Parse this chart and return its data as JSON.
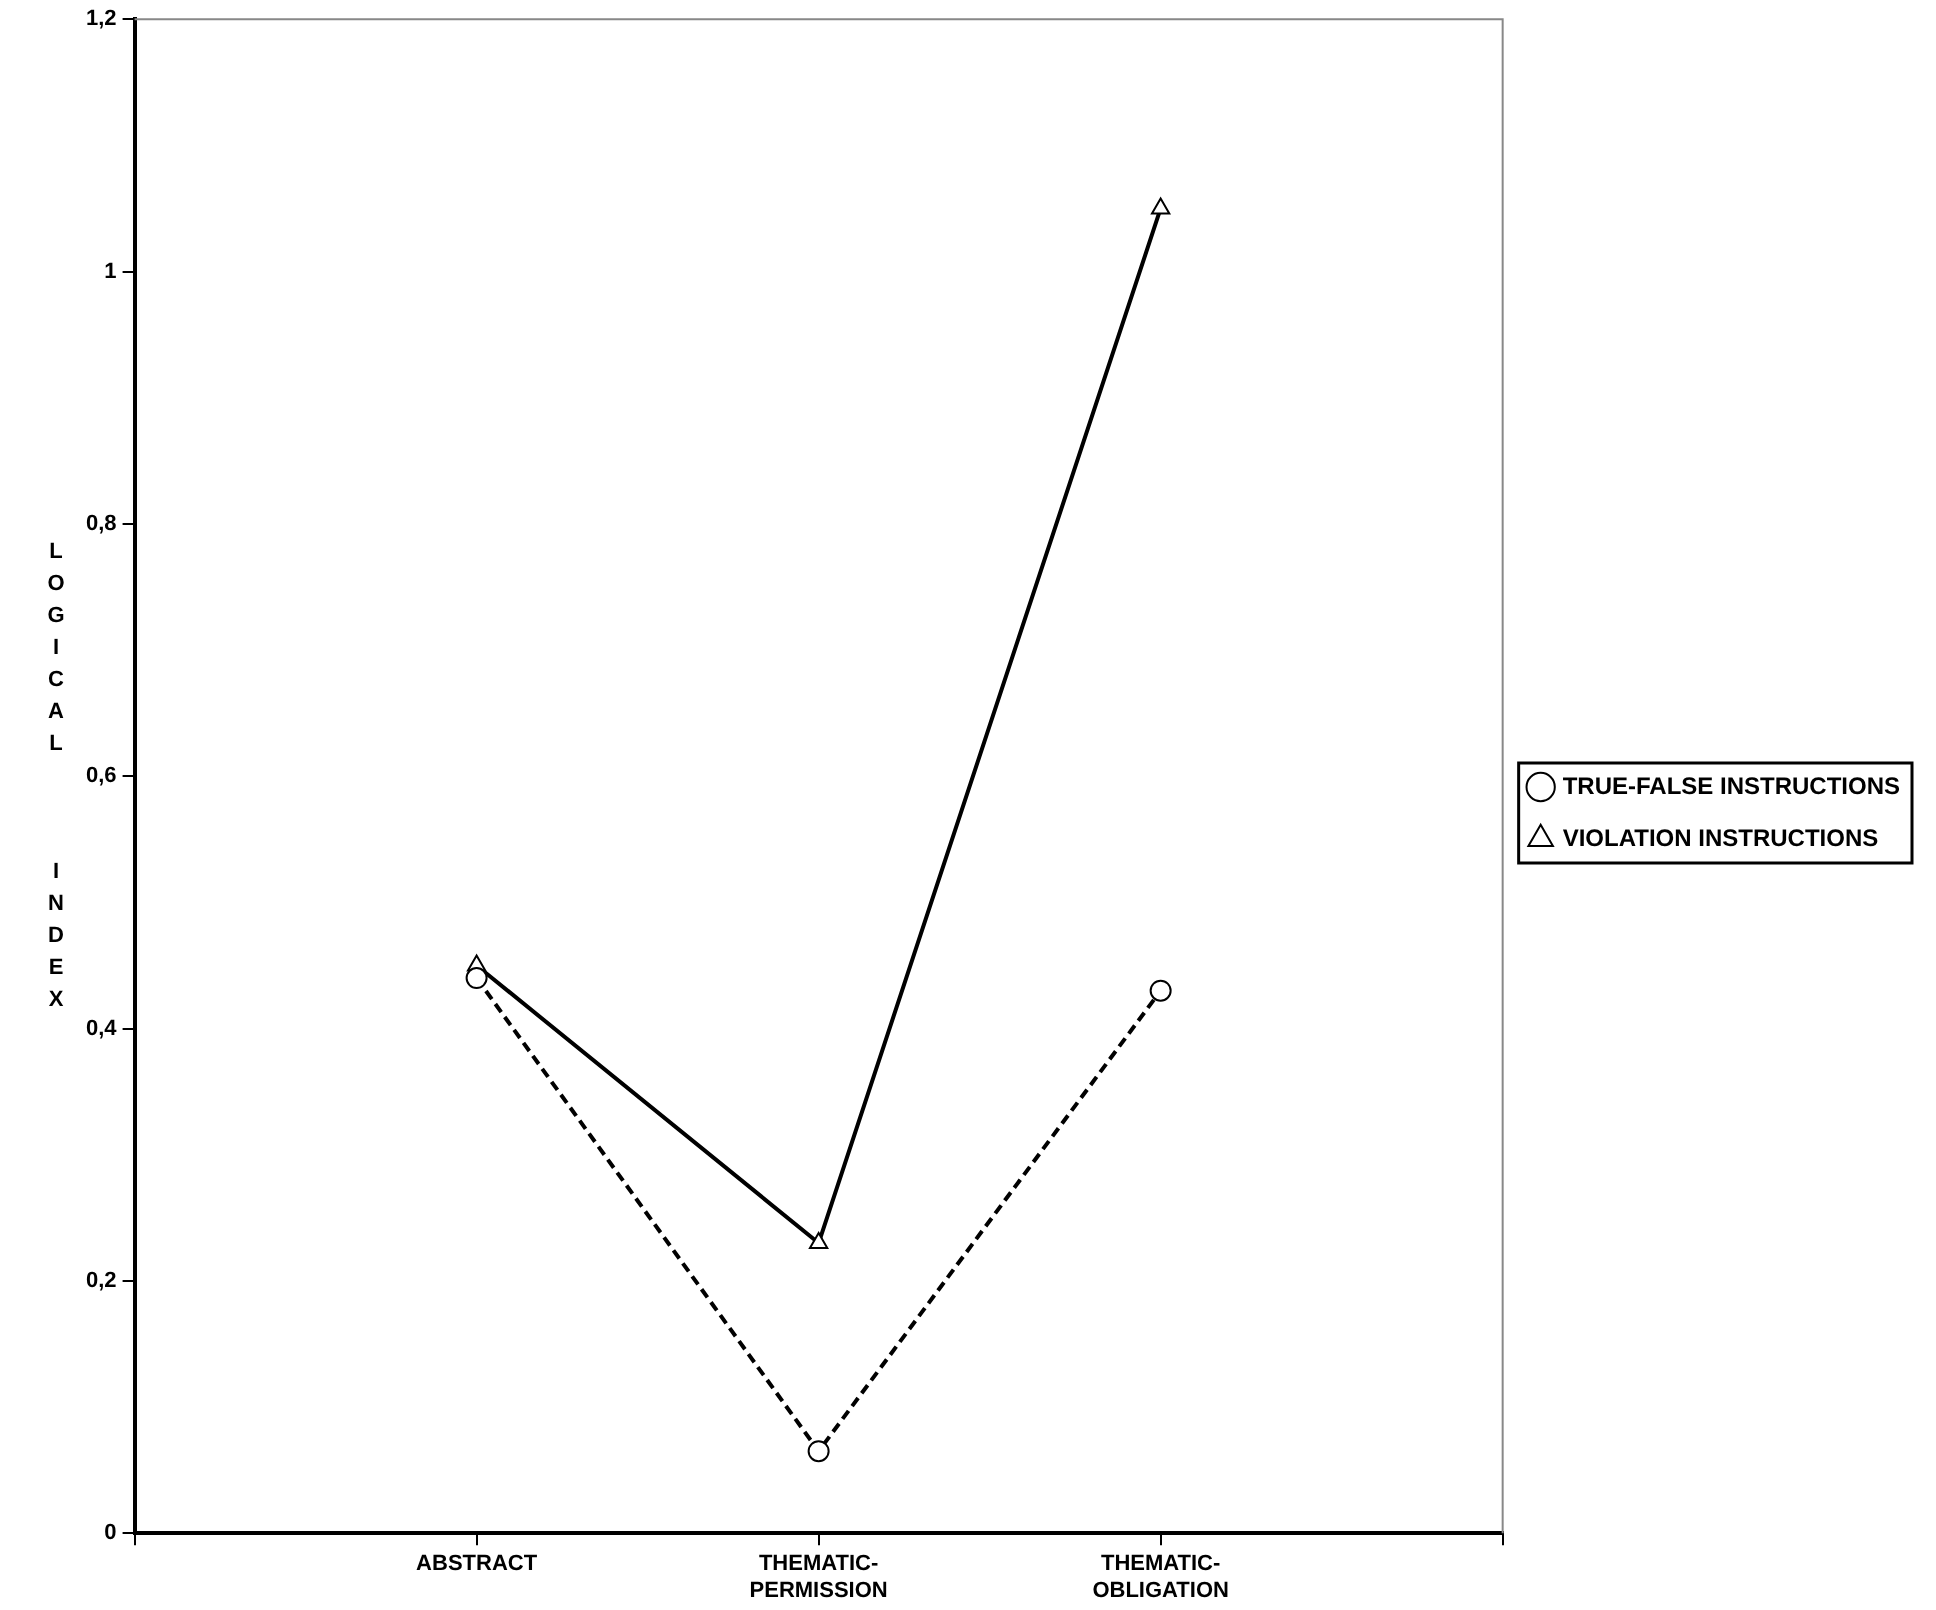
{
  "chart_data": {
    "type": "line",
    "ylabel": "LOGICAL INDEX",
    "categories": [
      null,
      "ABSTRACT",
      "THEMATIC-PERMISSION",
      "THEMATIC-OBLIGATION",
      null
    ],
    "series": [
      {
        "name": "TRUE-FALSE INSTRUCTIONS",
        "color": "#000000",
        "values": [
          null,
          0.44,
          0.065,
          0.43,
          null
        ],
        "marker": "circle",
        "line_style": "dashed"
      },
      {
        "name": "VIOLATION INSTRUCTIONS",
        "color": "#000000",
        "values": [
          null,
          0.45,
          0.23,
          1.05,
          null
        ],
        "marker": "triangle",
        "line_style": "solid"
      }
    ],
    "ylim": [
      0,
      1.2
    ],
    "yticks": [
      0,
      {
        "value": 0.2,
        "label": "0,2"
      },
      {
        "value": 0.4,
        "label": "0,4"
      },
      {
        "value": 0.6,
        "label": "0,6"
      },
      {
        "value": 0.8,
        "label": "0,8"
      },
      1,
      {
        "value": 1.2,
        "label": "1,2"
      }
    ],
    "grid": false,
    "legend": "right"
  }
}
